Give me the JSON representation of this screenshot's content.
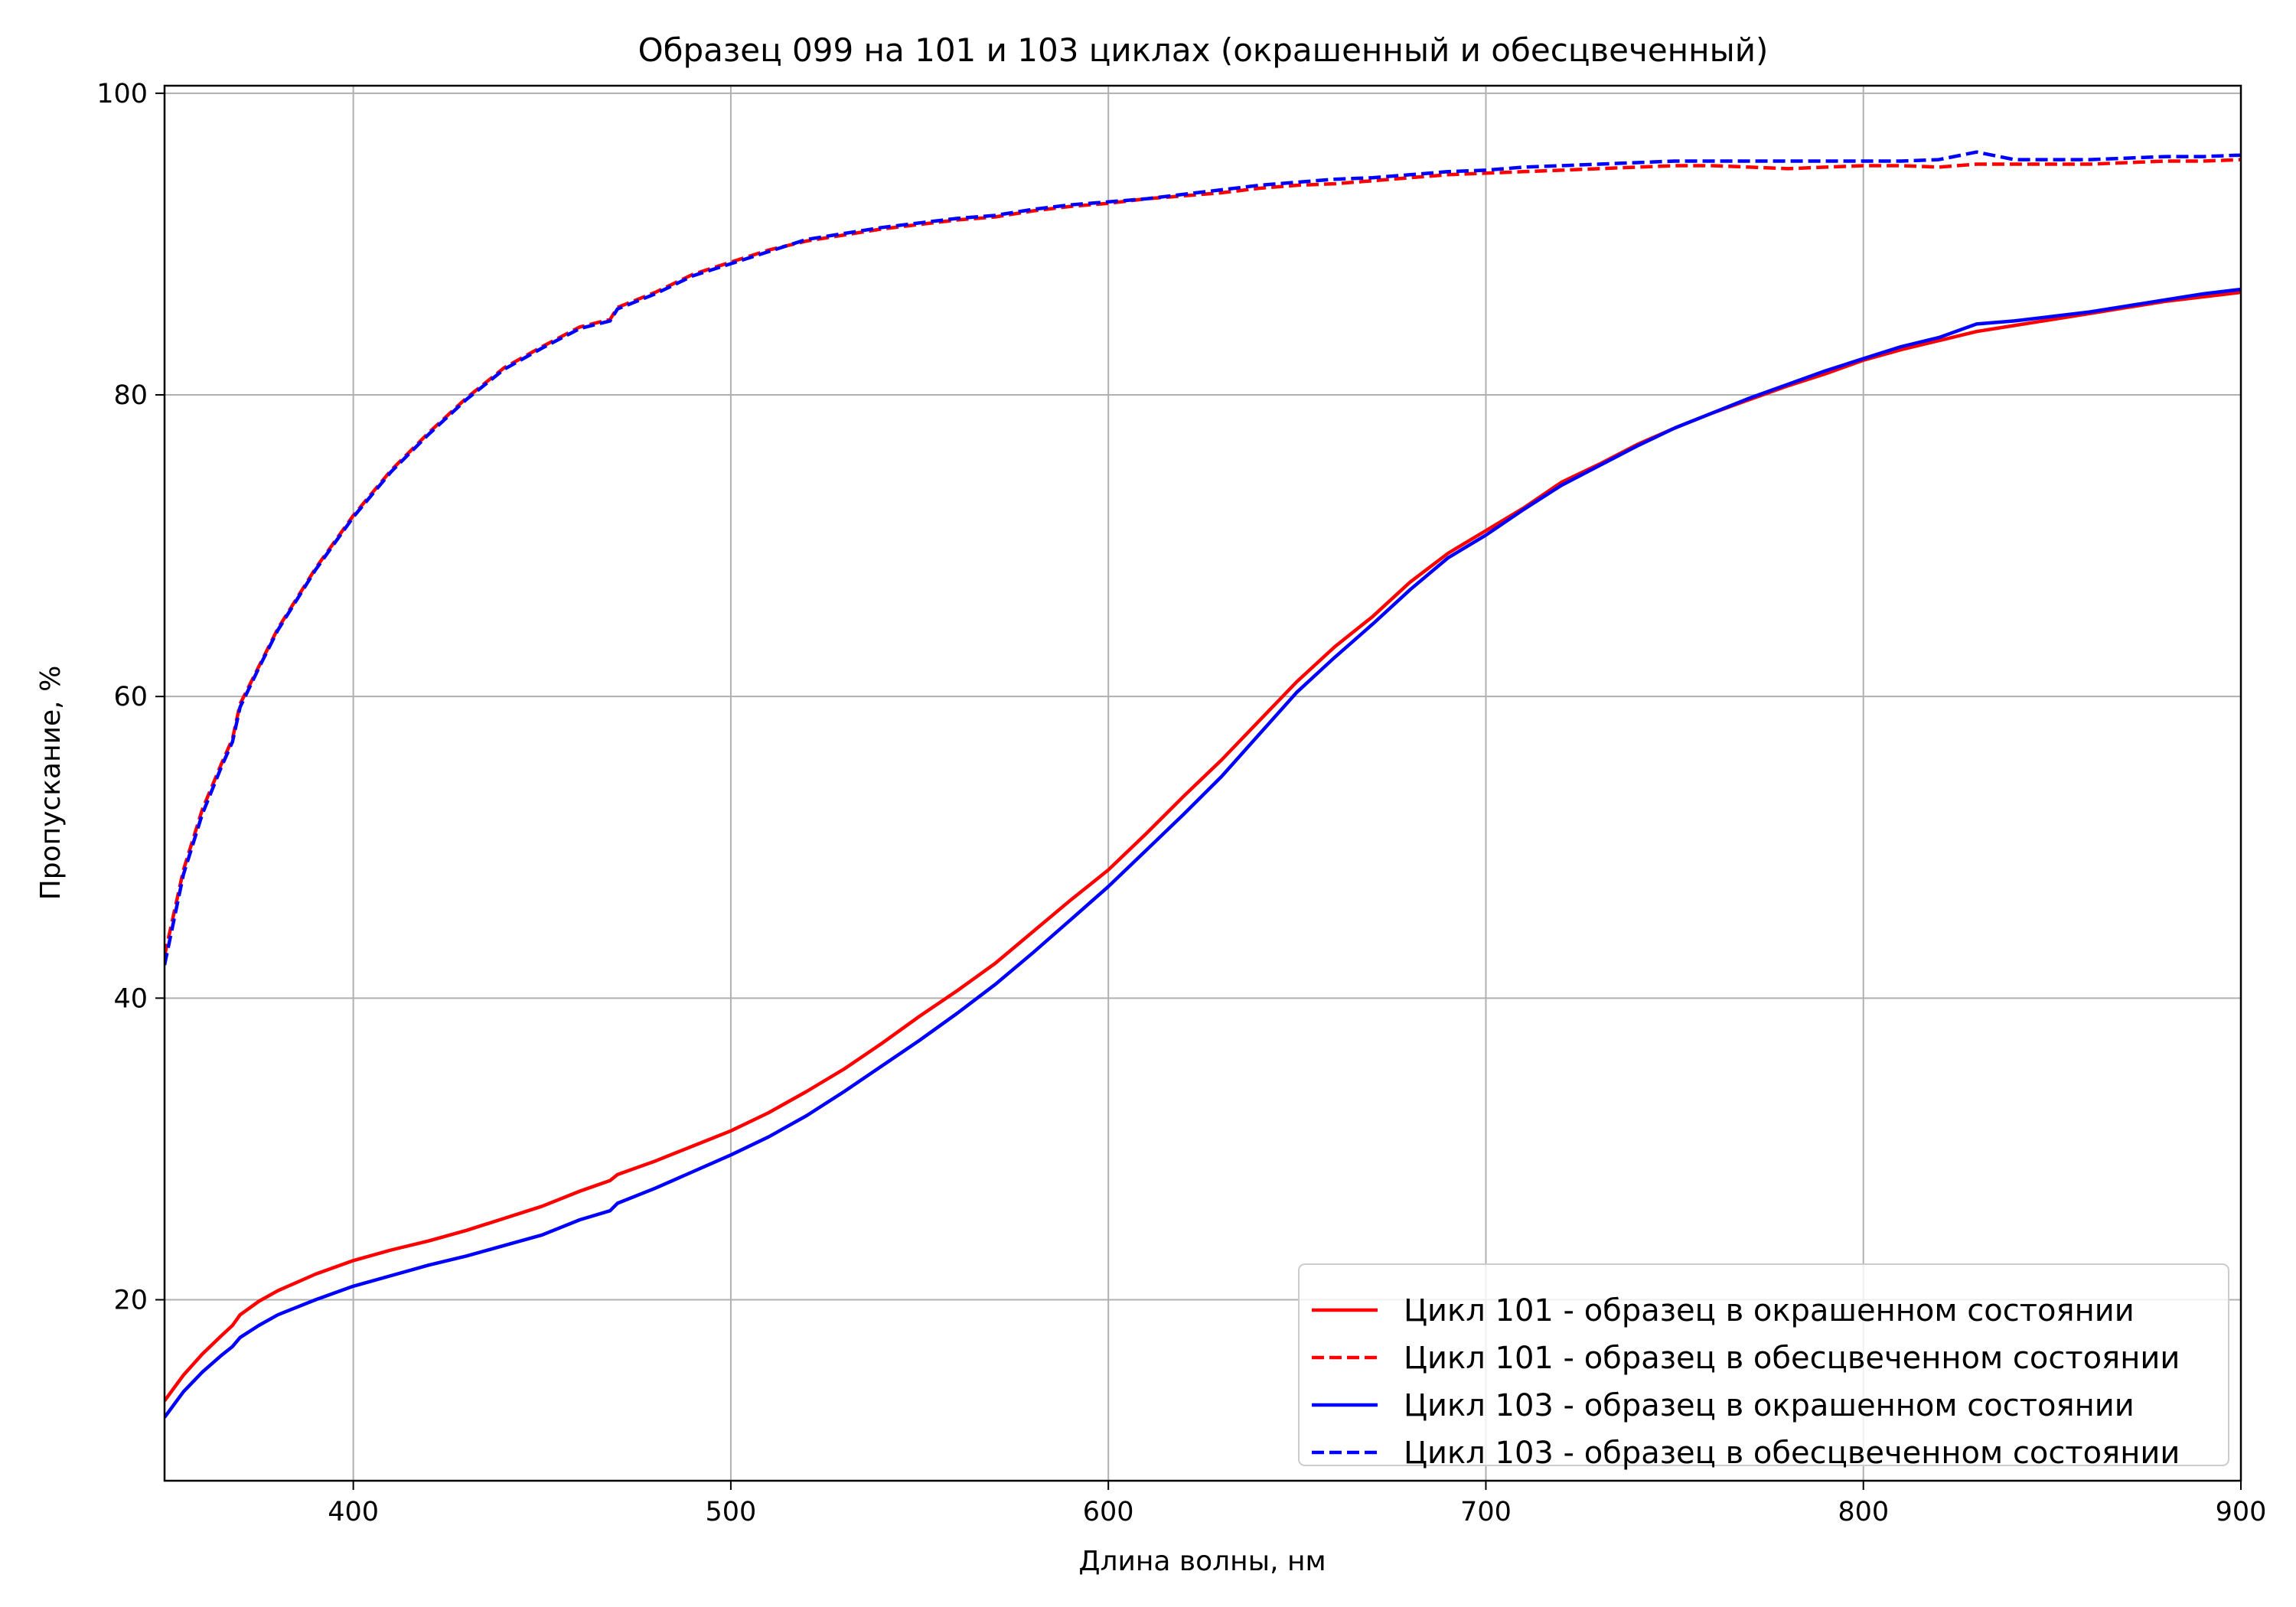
{
  "chart_data": {
    "type": "line",
    "title": "Образец 099 на 101 и 103 циклах (окрашенный и обесцвеченный)",
    "xlabel": "Длина волны, нм",
    "ylabel": "Пропускание, %",
    "xlim": [
      350,
      900
    ],
    "ylim": [
      8,
      100.5
    ],
    "xticks": [
      400,
      500,
      600,
      700,
      800,
      900
    ],
    "xtick_labels": [
      "400",
      "500",
      "600",
      "700",
      "800",
      "900"
    ],
    "yticks": [
      20,
      40,
      60,
      80,
      100
    ],
    "ytick_labels": [
      "20",
      "40",
      "60",
      "80",
      "100"
    ],
    "grid": true,
    "legend_position": "lower right",
    "series": [
      {
        "name": "Цикл 101 - образец в окрашенном состоянии",
        "color": "#ff0000",
        "style": "solid",
        "x": [
          350,
          355,
          360,
          365,
          368,
          370,
          375,
          380,
          390,
          400,
          410,
          420,
          430,
          440,
          450,
          460,
          468,
          470,
          480,
          490,
          500,
          510,
          520,
          530,
          540,
          550,
          560,
          570,
          580,
          590,
          600,
          610,
          620,
          630,
          640,
          650,
          660,
          670,
          680,
          690,
          700,
          710,
          720,
          730,
          740,
          750,
          760,
          770,
          780,
          790,
          800,
          810,
          820,
          830,
          840,
          850,
          860,
          870,
          880,
          890,
          900
        ],
        "y": [
          13.3,
          15.0,
          16.4,
          17.6,
          18.3,
          19.0,
          19.9,
          20.6,
          21.7,
          22.6,
          23.3,
          23.9,
          24.6,
          25.4,
          26.2,
          27.2,
          27.9,
          28.3,
          29.2,
          30.2,
          31.2,
          32.4,
          33.8,
          35.3,
          37.0,
          38.8,
          40.5,
          42.3,
          44.4,
          46.5,
          48.5,
          50.9,
          53.4,
          55.8,
          58.4,
          61.0,
          63.3,
          65.3,
          67.6,
          69.5,
          71.0,
          72.5,
          74.2,
          75.4,
          76.7,
          77.8,
          78.8,
          79.7,
          80.6,
          81.4,
          82.3,
          83.0,
          83.6,
          84.2,
          84.6,
          85.0,
          85.4,
          85.8,
          86.2,
          86.5,
          86.8
        ]
      },
      {
        "name": "Цикл 101 - образец в обесцвеченном состоянии",
        "color": "#ff0000",
        "style": "dashed",
        "x": [
          350,
          355,
          360,
          365,
          368,
          370,
          375,
          380,
          390,
          400,
          410,
          420,
          430,
          440,
          450,
          460,
          468,
          470,
          480,
          490,
          500,
          510,
          520,
          530,
          540,
          550,
          560,
          570,
          580,
          590,
          600,
          610,
          620,
          630,
          640,
          650,
          660,
          670,
          680,
          690,
          700,
          710,
          720,
          730,
          740,
          750,
          760,
          770,
          780,
          790,
          800,
          810,
          820,
          830,
          840,
          850,
          860,
          870,
          880,
          890,
          900
        ],
        "y": [
          42.8,
          48.5,
          52.5,
          55.5,
          57.2,
          59.5,
          62.0,
          64.5,
          68.5,
          72.0,
          75.0,
          77.5,
          79.8,
          81.8,
          83.2,
          84.5,
          85.0,
          85.8,
          86.8,
          88.0,
          88.8,
          89.6,
          90.2,
          90.6,
          91.0,
          91.3,
          91.6,
          91.8,
          92.2,
          92.5,
          92.7,
          93.0,
          93.2,
          93.4,
          93.7,
          93.9,
          94.0,
          94.2,
          94.4,
          94.6,
          94.7,
          94.8,
          94.9,
          95.0,
          95.1,
          95.2,
          95.2,
          95.1,
          95.0,
          95.1,
          95.2,
          95.2,
          95.1,
          95.3,
          95.3,
          95.3,
          95.3,
          95.4,
          95.5,
          95.5,
          95.6
        ]
      },
      {
        "name": "Цикл 103 - образец в окрашенном состоянии",
        "color": "#0000ff",
        "style": "solid",
        "x": [
          350,
          355,
          360,
          365,
          368,
          370,
          375,
          380,
          390,
          400,
          410,
          420,
          430,
          440,
          450,
          460,
          468,
          470,
          480,
          490,
          500,
          510,
          520,
          530,
          540,
          550,
          560,
          570,
          580,
          590,
          600,
          610,
          620,
          630,
          640,
          650,
          660,
          670,
          680,
          690,
          700,
          710,
          720,
          730,
          740,
          750,
          760,
          770,
          780,
          790,
          800,
          810,
          820,
          830,
          840,
          850,
          860,
          870,
          880,
          890,
          900
        ],
        "y": [
          12.2,
          13.9,
          15.2,
          16.3,
          16.9,
          17.5,
          18.3,
          19.0,
          20.0,
          20.9,
          21.6,
          22.3,
          22.9,
          23.6,
          24.3,
          25.3,
          25.9,
          26.4,
          27.4,
          28.5,
          29.6,
          30.8,
          32.2,
          33.8,
          35.5,
          37.2,
          39.0,
          40.9,
          43.0,
          45.2,
          47.4,
          49.8,
          52.2,
          54.7,
          57.5,
          60.3,
          62.6,
          64.8,
          67.1,
          69.2,
          70.7,
          72.4,
          74.0,
          75.3,
          76.6,
          77.8,
          78.8,
          79.8,
          80.7,
          81.6,
          82.4,
          83.2,
          83.8,
          84.7,
          84.9,
          85.2,
          85.5,
          85.9,
          86.3,
          86.7,
          87.0
        ]
      },
      {
        "name": "Цикл 103 - образец в обесцвеченном состоянии",
        "color": "#0000ff",
        "style": "dashed",
        "x": [
          350,
          355,
          360,
          365,
          368,
          370,
          375,
          380,
          390,
          400,
          410,
          420,
          430,
          440,
          450,
          460,
          468,
          470,
          480,
          490,
          500,
          510,
          520,
          530,
          540,
          550,
          560,
          570,
          580,
          590,
          600,
          610,
          620,
          630,
          640,
          650,
          660,
          670,
          680,
          690,
          700,
          710,
          720,
          730,
          740,
          750,
          760,
          770,
          780,
          790,
          800,
          810,
          820,
          830,
          840,
          850,
          860,
          870,
          880,
          890,
          900
        ],
        "y": [
          42.2,
          48.2,
          52.2,
          55.3,
          57.0,
          59.3,
          61.9,
          64.4,
          68.4,
          71.9,
          74.9,
          77.4,
          79.7,
          81.7,
          83.1,
          84.4,
          84.9,
          85.7,
          86.7,
          87.9,
          88.7,
          89.5,
          90.3,
          90.7,
          91.1,
          91.4,
          91.7,
          91.9,
          92.3,
          92.6,
          92.8,
          93.0,
          93.3,
          93.6,
          93.9,
          94.1,
          94.3,
          94.4,
          94.6,
          94.8,
          94.9,
          95.1,
          95.2,
          95.3,
          95.4,
          95.5,
          95.5,
          95.5,
          95.5,
          95.5,
          95.5,
          95.5,
          95.6,
          96.1,
          95.6,
          95.6,
          95.6,
          95.7,
          95.8,
          95.8,
          95.9
        ]
      }
    ]
  }
}
